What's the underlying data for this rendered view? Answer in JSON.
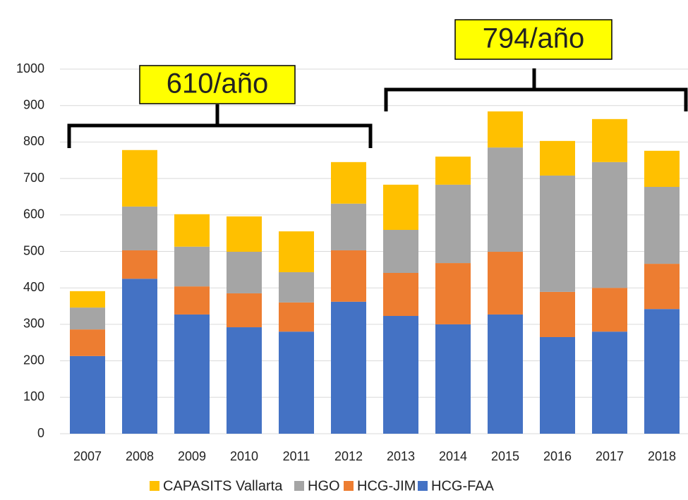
{
  "chart_data": {
    "type": "stacked_bar",
    "categories": [
      "2007",
      "2008",
      "2009",
      "2010",
      "2011",
      "2012",
      "2013",
      "2014",
      "2015",
      "2016",
      "2017",
      "2018"
    ],
    "series": [
      {
        "name": "HCG-FAA",
        "color": "#4472c4",
        "values": [
          213,
          425,
          327,
          292,
          280,
          362,
          323,
          300,
          327,
          265,
          280,
          342
        ]
      },
      {
        "name": "HCG-JIM",
        "color": "#ed7d31",
        "values": [
          73,
          78,
          77,
          93,
          80,
          141,
          118,
          168,
          172,
          124,
          120,
          124
        ]
      },
      {
        "name": "HGO",
        "color": "#a5a5a5",
        "values": [
          60,
          120,
          109,
          114,
          83,
          128,
          118,
          215,
          286,
          319,
          345,
          211
        ]
      },
      {
        "name": "CAPASITS Vallarta",
        "color": "#ffc000",
        "values": [
          45,
          155,
          89,
          97,
          112,
          114,
          124,
          77,
          99,
          95,
          118,
          99
        ]
      }
    ],
    "ylim": [
      0,
      1000
    ],
    "yticks": [
      0,
      100,
      200,
      300,
      400,
      500,
      600,
      700,
      800,
      900,
      1000
    ],
    "grid": true,
    "annotations": [
      "610/año",
      "794/año"
    ]
  }
}
